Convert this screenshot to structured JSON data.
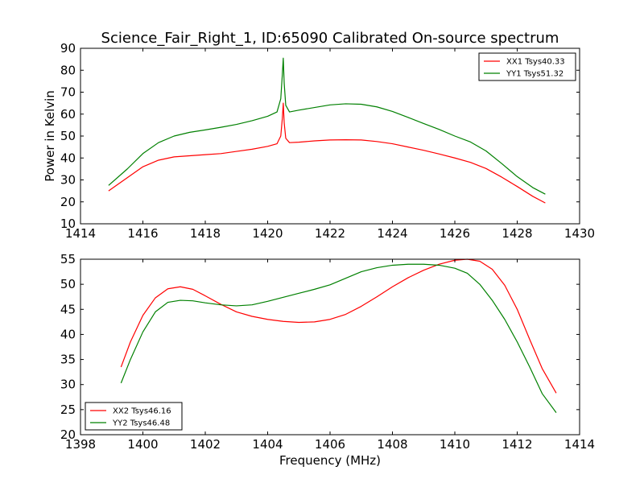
{
  "colors": {
    "red": "#ff0000",
    "green": "#008000"
  },
  "chart_data": [
    {
      "type": "line",
      "title": "Science_Fair_Right_1, ID:65090 Calibrated On-source spectrum",
      "xlabel": "",
      "ylabel": "Power in Kelvin",
      "xlim": [
        1414,
        1430
      ],
      "ylim": [
        10,
        90
      ],
      "xticks": [
        1414,
        1416,
        1418,
        1420,
        1422,
        1424,
        1426,
        1428,
        1430
      ],
      "yticks": [
        10,
        20,
        30,
        40,
        50,
        60,
        70,
        80,
        90
      ],
      "legend_position": "upper right",
      "series": [
        {
          "name": "XX1 Tsys40.33",
          "color": "#ff0000",
          "x": [
            1414.9,
            1415.5,
            1416.0,
            1416.5,
            1417.0,
            1417.5,
            1418.0,
            1418.5,
            1419.0,
            1419.5,
            1420.0,
            1420.3,
            1420.42,
            1420.47,
            1420.5,
            1420.53,
            1420.58,
            1420.7,
            1421.0,
            1421.5,
            1422.0,
            1422.5,
            1423.0,
            1423.5,
            1424.0,
            1424.5,
            1425.0,
            1425.5,
            1426.0,
            1426.5,
            1427.0,
            1427.5,
            1428.0,
            1428.5,
            1428.9
          ],
          "y": [
            25,
            31,
            36,
            39,
            40.5,
            41,
            41.5,
            42,
            43,
            44,
            45.3,
            46.5,
            50,
            58,
            65,
            56,
            49,
            47,
            47.2,
            47.8,
            48.2,
            48.3,
            48.2,
            47.5,
            46.5,
            45,
            43.5,
            41.8,
            40,
            38,
            35.2,
            31.3,
            27,
            22.5,
            19.5
          ]
        },
        {
          "name": "YY1 Tsys51.32",
          "color": "#008000",
          "x": [
            1414.9,
            1415.5,
            1416.0,
            1416.5,
            1417.0,
            1417.5,
            1418.0,
            1418.5,
            1419.0,
            1419.5,
            1420.0,
            1420.3,
            1420.42,
            1420.47,
            1420.5,
            1420.53,
            1420.58,
            1420.7,
            1421.0,
            1421.5,
            1422.0,
            1422.5,
            1423.0,
            1423.5,
            1424.0,
            1424.5,
            1425.0,
            1425.5,
            1426.0,
            1426.5,
            1427.0,
            1427.5,
            1428.0,
            1428.5,
            1428.9
          ],
          "y": [
            27.5,
            35,
            42,
            47,
            50,
            51.7,
            52.8,
            54,
            55.3,
            57,
            59,
            61,
            67,
            78,
            85.5,
            74,
            64,
            61,
            61.8,
            63,
            64.2,
            64.7,
            64.5,
            63.3,
            61.2,
            58.5,
            55.7,
            53,
            50,
            47.3,
            43.2,
            37.5,
            31.5,
            26.5,
            23.5
          ]
        }
      ]
    },
    {
      "type": "line",
      "title": "",
      "xlabel": "Frequency (MHz)",
      "ylabel": "",
      "xlim": [
        1398,
        1414
      ],
      "ylim": [
        20,
        55
      ],
      "xticks": [
        1398,
        1400,
        1402,
        1404,
        1406,
        1408,
        1410,
        1412,
        1414
      ],
      "yticks": [
        20,
        25,
        30,
        35,
        40,
        45,
        50,
        55
      ],
      "legend_position": "lower left",
      "series": [
        {
          "name": "XX2 Tsys46.16",
          "color": "#ff0000",
          "x": [
            1399.3,
            1399.6,
            1400.0,
            1400.4,
            1400.8,
            1401.2,
            1401.6,
            1402.0,
            1402.5,
            1403.0,
            1403.5,
            1404.0,
            1404.5,
            1405.0,
            1405.5,
            1406.0,
            1406.5,
            1407.0,
            1407.5,
            1408.0,
            1408.5,
            1409.0,
            1409.5,
            1410.0,
            1410.4,
            1410.8,
            1411.2,
            1411.6,
            1412.0,
            1412.4,
            1412.8,
            1413.25
          ],
          "y": [
            33.5,
            38.5,
            43.8,
            47.3,
            49.1,
            49.5,
            49,
            47.7,
            46,
            44.5,
            43.6,
            43,
            42.6,
            42.4,
            42.5,
            43,
            44,
            45.6,
            47.5,
            49.5,
            51.3,
            52.8,
            54,
            54.8,
            55,
            54.6,
            53,
            49.8,
            45,
            39,
            33.2,
            28.3
          ]
        },
        {
          "name": "YY2 Tsys46.48",
          "color": "#008000",
          "x": [
            1399.3,
            1399.6,
            1400.0,
            1400.4,
            1400.8,
            1401.2,
            1401.6,
            1402.0,
            1402.5,
            1403.0,
            1403.5,
            1404.0,
            1404.5,
            1405.0,
            1405.5,
            1406.0,
            1406.5,
            1407.0,
            1407.5,
            1408.0,
            1408.5,
            1409.0,
            1409.5,
            1410.0,
            1410.4,
            1410.8,
            1411.2,
            1411.6,
            1412.0,
            1412.4,
            1412.8,
            1413.25
          ],
          "y": [
            30.3,
            35,
            40.5,
            44.5,
            46.4,
            46.8,
            46.7,
            46.3,
            45.9,
            45.7,
            45.9,
            46.6,
            47.4,
            48.2,
            49,
            49.9,
            51.2,
            52.5,
            53.3,
            53.8,
            54,
            54,
            53.8,
            53.2,
            52.2,
            50,
            46.8,
            43,
            38.5,
            33.5,
            28.2,
            24.4
          ]
        }
      ]
    }
  ]
}
